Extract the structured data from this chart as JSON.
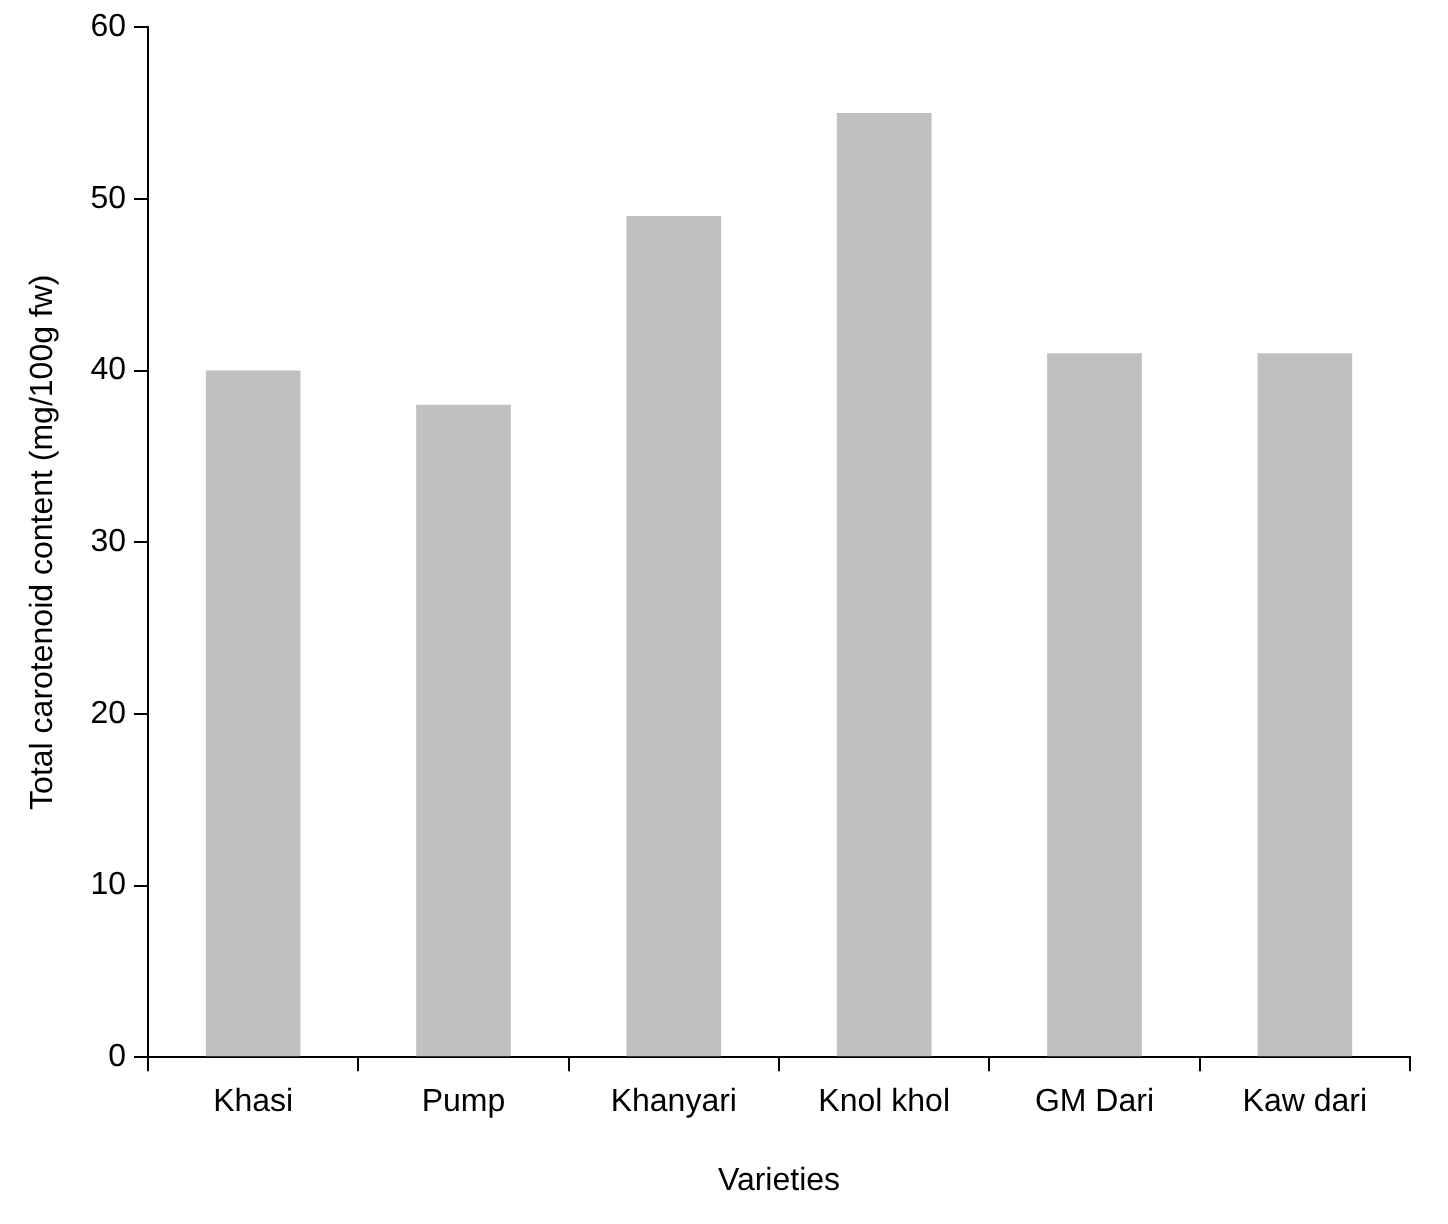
{
  "chart_data": {
    "type": "bar",
    "xlabel": "Varieties",
    "ylabel": "Total carotenoid content (mg/100g fw)",
    "categories": [
      "Khasi",
      "Pump",
      "Khanyari",
      "Knol khol",
      "GM Dari",
      "Kaw dari"
    ],
    "values": [
      40,
      38,
      49,
      55,
      41,
      41
    ],
    "color": "#c0c0c0",
    "ylim": [
      0,
      60
    ],
    "yticks": [
      0,
      10,
      20,
      30,
      40,
      50,
      60
    ],
    "grid": false,
    "legend": false
  }
}
